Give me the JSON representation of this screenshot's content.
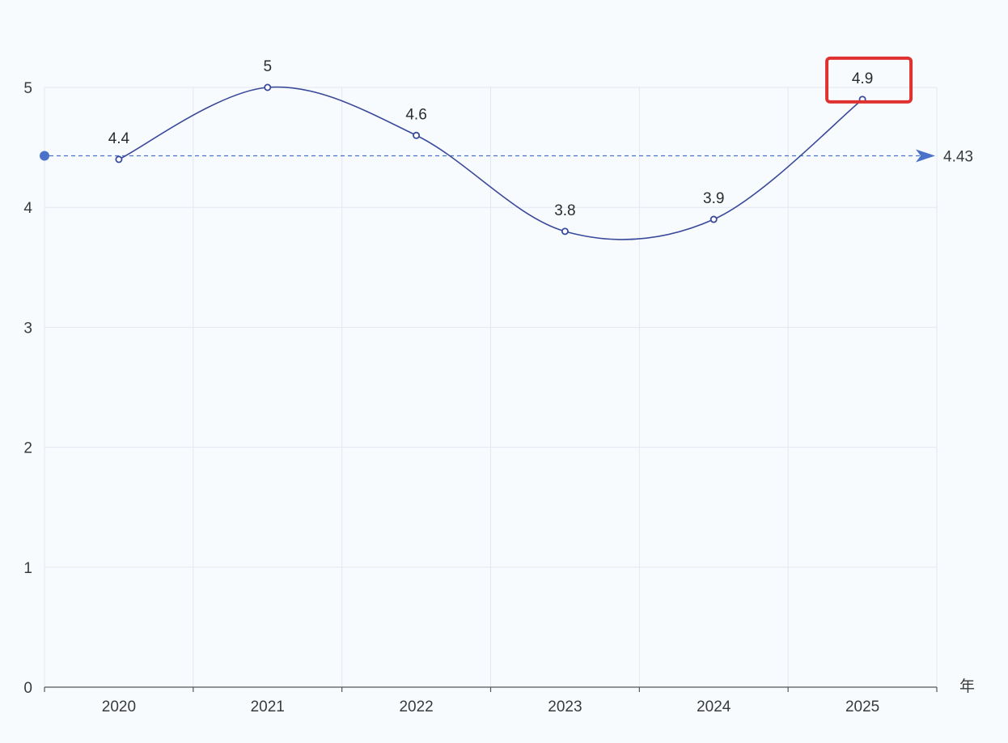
{
  "chart_data": {
    "type": "line",
    "smooth": true,
    "categories": [
      "2020",
      "2021",
      "2022",
      "2023",
      "2024",
      "2025"
    ],
    "series": [
      {
        "values": [
          4.4,
          5,
          4.6,
          3.8,
          3.9,
          4.9
        ]
      }
    ],
    "data_labels": [
      "4.4",
      "5",
      "4.6",
      "3.8",
      "3.9",
      "4.9"
    ],
    "yticks": [
      "0",
      "1",
      "2",
      "3",
      "4",
      "5"
    ],
    "ylim": [
      0,
      5
    ],
    "xlabel": "年",
    "grid": true,
    "mark_line": {
      "value": 4.43,
      "label": "4.43",
      "style": "dashed"
    },
    "highlight": {
      "category": "2025",
      "label": "4.9",
      "box_color": "#e03131"
    },
    "colors": {
      "line": "#3a4a9a",
      "mark_line": "#4a72c8",
      "grid": "#e3e8f0",
      "axis": "#555555",
      "background": "#f8fbfe"
    }
  }
}
